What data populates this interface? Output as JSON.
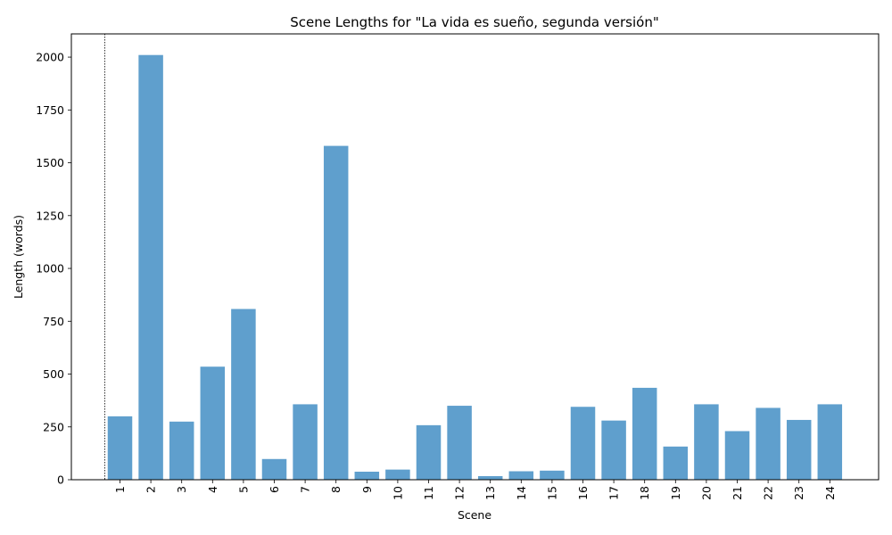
{
  "chart_data": {
    "type": "bar",
    "title": "Scene Lengths for \"La vida es sueño, segunda versión\"",
    "xlabel": "Scene",
    "ylabel": "Length (words)",
    "categories": [
      "1",
      "2",
      "3",
      "4",
      "5",
      "6",
      "7",
      "8",
      "9",
      "10",
      "11",
      "12",
      "13",
      "14",
      "15",
      "16",
      "17",
      "18",
      "19",
      "20",
      "21",
      "22",
      "23",
      "24"
    ],
    "values": [
      300,
      2010,
      275,
      535,
      808,
      98,
      357,
      1580,
      38,
      48,
      258,
      350,
      17,
      40,
      43,
      345,
      280,
      435,
      157,
      357,
      230,
      340,
      283,
      357
    ],
    "ylim": [
      0,
      2110
    ],
    "yticks": [
      0,
      250,
      500,
      750,
      1000,
      1250,
      1500,
      1750,
      2000
    ],
    "bar_color": "#5f9fcd",
    "x_tick_rotation": "vertical",
    "grid": false,
    "reference_line": {
      "position": "before scene 1",
      "style": "dashed",
      "color": "#000000"
    }
  }
}
